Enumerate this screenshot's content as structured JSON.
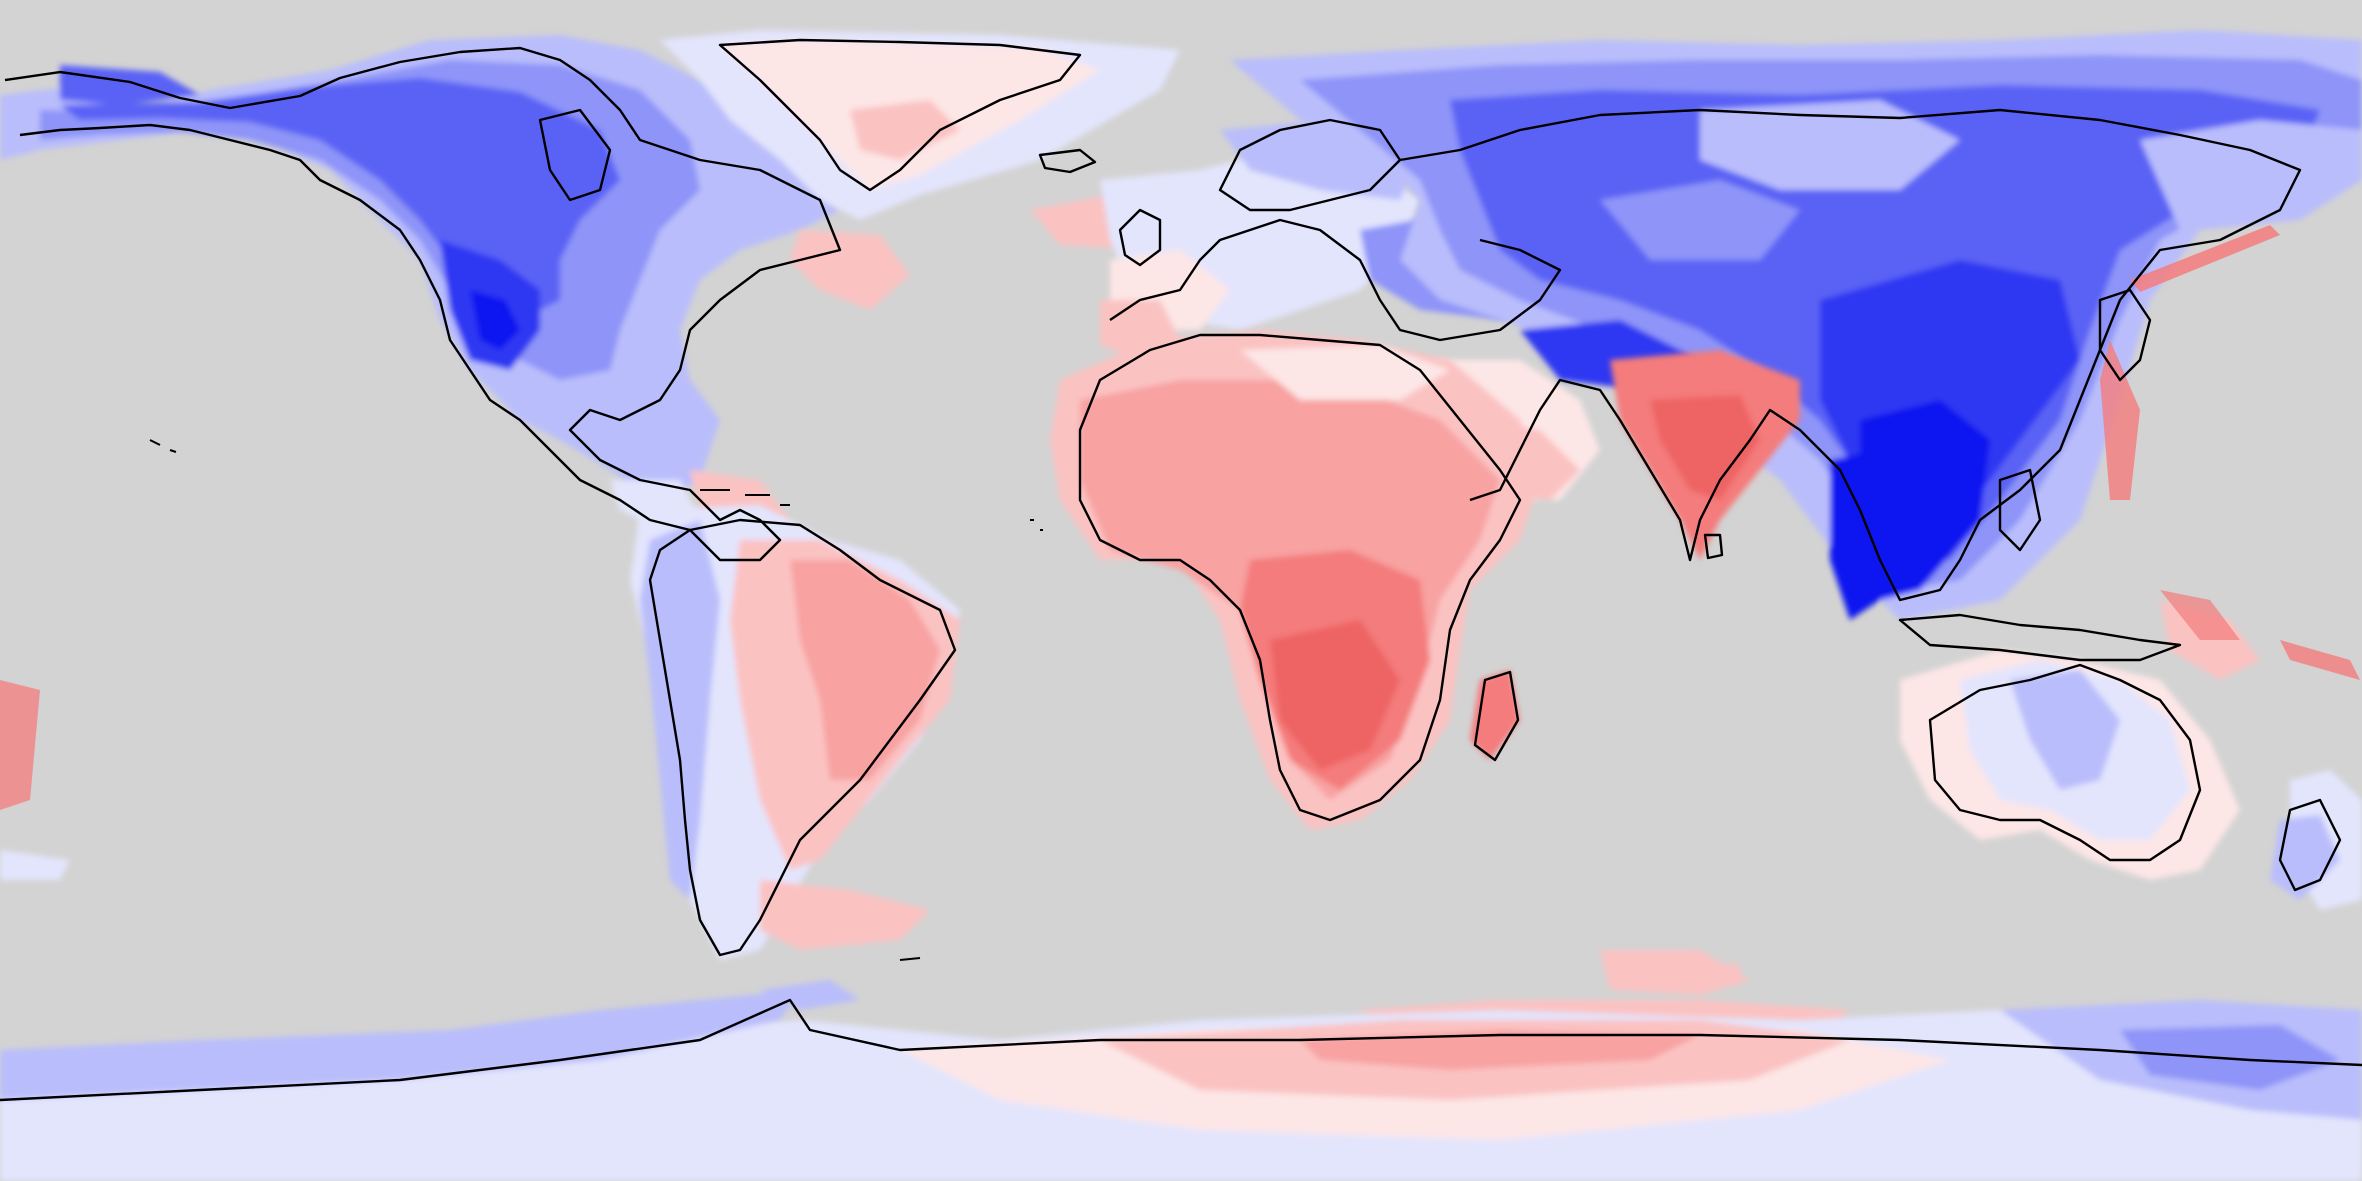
{
  "map": {
    "projection": "equirectangular",
    "extent": {
      "lon": [
        -180,
        180
      ],
      "lat": [
        -90,
        90
      ]
    },
    "ocean_color": "#d3d3d3",
    "coastline_color": "#000000",
    "scale_colors": {
      "blue_strong": "#0b12f0",
      "blue_dark": "#2f37f2",
      "blue": "#5a62f5",
      "blue_mid": "#8e94f8",
      "blue_light": "#b9bdfb",
      "blue_pale": "#e3e5fd",
      "red_pale": "#fde6e6",
      "red_light": "#fbc2c2",
      "red_mid": "#f8a2a2",
      "red": "#f47c7c",
      "red_strong": "#ee6464"
    },
    "regions": [
      {
        "id": "north-america",
        "anomaly": "negative"
      },
      {
        "id": "south-america",
        "anomaly": "positive"
      },
      {
        "id": "greenland",
        "anomaly": "slightly-positive"
      },
      {
        "id": "europe",
        "anomaly": "mixed"
      },
      {
        "id": "africa",
        "anomaly": "positive"
      },
      {
        "id": "india",
        "anomaly": "positive"
      },
      {
        "id": "asia",
        "anomaly": "negative"
      },
      {
        "id": "southeast-asia",
        "anomaly": "strongly-negative"
      },
      {
        "id": "australia",
        "anomaly": "slightly-negative"
      },
      {
        "id": "antarctica",
        "anomaly": "mixed"
      }
    ]
  }
}
